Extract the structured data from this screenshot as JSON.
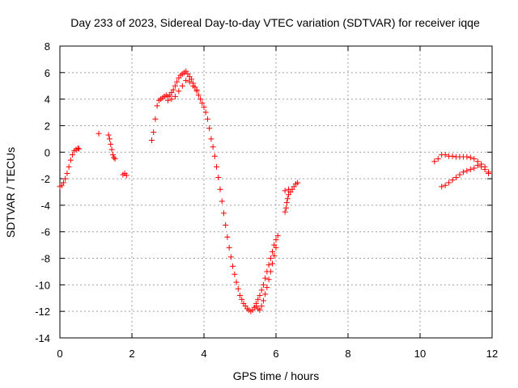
{
  "chart_data": {
    "type": "scatter",
    "title": "Day 233 of 2023, Sidereal Day-to-day VTEC variation (SDTVAR) for receiver iqqe",
    "xlabel": "GPS time / hours",
    "ylabel": "SDTVAR / TECUs",
    "xlim": [
      0,
      12
    ],
    "ylim": [
      -14,
      8
    ],
    "x_ticks": [
      0,
      2,
      4,
      6,
      8,
      10,
      12
    ],
    "x_tick_labels": [
      "0",
      "2",
      "4",
      "6",
      "8",
      "10",
      "12"
    ],
    "y_ticks": [
      -14,
      -12,
      -10,
      -8,
      -6,
      -4,
      -2,
      0,
      2,
      4,
      6,
      8
    ],
    "y_tick_labels": [
      "-14",
      "-12",
      "-10",
      "-8",
      "-6",
      "-4",
      "-2",
      "0",
      "2",
      "4",
      "6",
      "8"
    ],
    "grid": true,
    "marker": "+",
    "series_color": "#ff0000",
    "series": [
      {
        "name": "SDTVAR",
        "segments": [
          {
            "x": [
              0.0,
              0.05,
              0.1,
              0.15,
              0.2,
              0.25,
              0.3,
              0.35,
              0.4,
              0.45,
              0.5,
              0.53
            ],
            "y": [
              -2.6,
              -2.5,
              -2.3,
              -2.0,
              -1.6,
              -1.1,
              -0.6,
              -0.2,
              0.1,
              0.2,
              0.3,
              0.25
            ]
          },
          {
            "x": [
              1.08
            ],
            "y": [
              1.4
            ]
          },
          {
            "x": [
              1.35,
              1.38,
              1.41,
              1.44,
              1.47,
              1.5,
              1.53
            ],
            "y": [
              1.3,
              1.0,
              0.6,
              0.2,
              -0.2,
              -0.4,
              -0.5
            ]
          },
          {
            "x": [
              1.75,
              1.8,
              1.85
            ],
            "y": [
              -1.7,
              -1.6,
              -1.75
            ]
          },
          {
            "x": [
              2.55,
              2.6,
              2.65,
              2.7,
              2.75,
              2.8,
              2.85,
              2.9,
              2.95,
              3.0,
              3.05,
              3.1,
              3.15,
              3.2,
              3.25,
              3.3,
              3.35,
              3.4,
              3.45,
              3.5,
              3.55,
              3.6,
              3.65,
              3.7,
              3.75,
              3.8,
              3.85,
              3.9,
              3.95,
              4.0,
              4.05,
              4.1,
              4.15,
              4.2,
              4.25,
              4.3,
              4.35,
              4.4,
              4.45,
              4.5,
              4.55,
              4.6,
              4.65,
              4.7,
              4.75,
              4.8,
              4.85,
              4.9,
              4.95,
              5.0,
              5.05,
              5.1,
              5.15,
              5.2,
              5.25,
              5.3,
              5.35,
              5.4,
              5.45,
              5.5,
              5.55,
              5.6,
              5.65,
              5.7,
              5.75,
              5.8,
              5.85,
              5.9,
              5.95,
              6.0,
              6.05
            ],
            "y": [
              0.9,
              1.5,
              2.5,
              3.5,
              3.9,
              4.0,
              4.1,
              4.2,
              4.3,
              4.2,
              4.3,
              4.5,
              4.7,
              5.0,
              5.3,
              5.6,
              5.8,
              5.9,
              6.0,
              6.1,
              5.9,
              5.7,
              5.5,
              5.2,
              4.9,
              4.6,
              4.3,
              4.0,
              3.7,
              3.4,
              3.0,
              2.5,
              1.8,
              1.0,
              0.4,
              -0.3,
              -1.1,
              -1.9,
              -2.8,
              -3.7,
              -4.6,
              -5.5,
              -6.4,
              -7.2,
              -7.9,
              -8.6,
              -9.2,
              -9.8,
              -10.3,
              -10.8,
              -11.1,
              -11.4,
              -11.6,
              -11.8,
              -11.9,
              -12.0,
              -11.9,
              -11.7,
              -11.4,
              -11.1,
              -10.8,
              -10.4,
              -10.0,
              -9.5,
              -9.0,
              -8.5,
              -8.0,
              -7.5,
              -7.0,
              -6.6,
              -6.3
            ]
          },
          {
            "x": [
              3.0,
              3.1,
              3.2,
              3.3,
              3.4,
              3.5,
              3.6,
              3.7,
              3.8
            ],
            "y": [
              3.9,
              4.0,
              4.2,
              4.6,
              5.0,
              5.4,
              5.3,
              5.0,
              4.7
            ]
          },
          {
            "x": [
              5.45,
              5.5,
              5.55,
              5.6,
              5.65,
              5.7,
              5.75,
              5.8,
              5.85,
              5.9,
              5.95,
              6.0
            ],
            "y": [
              -11.6,
              -11.8,
              -11.9,
              -11.6,
              -11.2,
              -10.7,
              -10.2,
              -9.6,
              -9.0,
              -8.4,
              -7.8,
              -7.2
            ]
          },
          {
            "x": [
              6.25,
              6.28,
              6.3,
              6.32,
              6.35,
              6.4,
              6.45,
              6.5,
              6.55,
              6.6
            ],
            "y": [
              -4.5,
              -4.2,
              -3.8,
              -3.5,
              -3.2,
              -3.0,
              -2.8,
              -2.6,
              -2.4,
              -2.3
            ]
          },
          {
            "x": [
              6.25,
              6.35
            ],
            "y": [
              -2.9,
              -2.8
            ]
          },
          {
            "x": [
              10.4,
              10.5,
              10.6,
              10.7,
              10.8,
              10.9,
              11.0,
              11.1,
              11.2,
              11.3,
              11.4,
              11.5,
              11.6,
              11.7,
              11.8,
              11.9
            ],
            "y": [
              -0.7,
              -0.5,
              -0.2,
              -0.2,
              -0.3,
              -0.3,
              -0.35,
              -0.35,
              -0.35,
              -0.35,
              -0.4,
              -0.5,
              -0.7,
              -0.9,
              -1.1,
              -1.5
            ]
          },
          {
            "x": [
              10.6,
              10.7,
              10.8,
              10.9,
              11.0,
              11.1,
              11.2,
              11.3,
              11.4,
              11.5,
              11.6,
              11.7,
              11.8,
              11.9
            ],
            "y": [
              -2.6,
              -2.5,
              -2.3,
              -2.1,
              -1.9,
              -1.7,
              -1.5,
              -1.4,
              -1.3,
              -1.2,
              -1.0,
              -1.1,
              -1.3,
              -1.6
            ]
          }
        ]
      }
    ]
  }
}
